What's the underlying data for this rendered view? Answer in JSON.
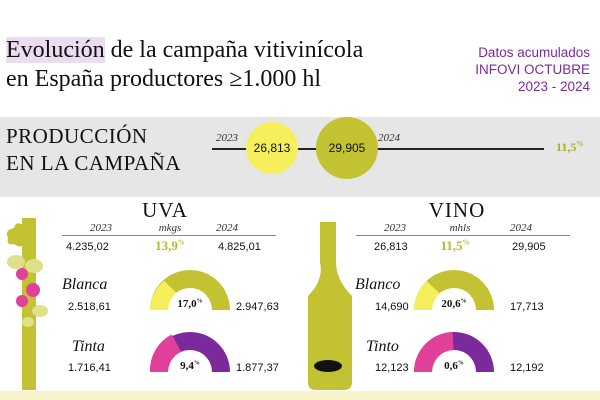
{
  "header": {
    "title_highlight": "Evolución",
    "title_rest": " de la campaña vitivinícola",
    "title_line2": "en España productores ≥1.000 hl",
    "source_line1": "Datos acumulados",
    "source_line2": "INFOVI OCTUBRE",
    "source_line3": "2023 - 2024"
  },
  "production": {
    "label_line1": "PRODUCCIÓN",
    "label_line2": "EN LA CAMPAÑA",
    "year1": "2023",
    "year2": "2024",
    "value1": "26,813",
    "value2": "29,905",
    "change": "11,5",
    "change_sup": "%"
  },
  "uva": {
    "title": "UVA",
    "unit": "mkgs",
    "year1": "2023",
    "year2": "2024",
    "total1": "4.235,02",
    "total2": "4.825,01",
    "total_change": "13,9",
    "blanca_label": "Blanca",
    "blanca1": "2.518,61",
    "blanca2": "2.947,63",
    "blanca_change": "17,0",
    "tinta_label": "Tinta",
    "tinta1": "1.716,41",
    "tinta2": "1.877,37",
    "tinta_change": "9,4",
    "pct_sign": "%"
  },
  "vino": {
    "title": "VINO",
    "unit": "mhls",
    "year1": "2023",
    "year2": "2024",
    "total1": "26,813",
    "total2": "29,905",
    "total_change": "11,5",
    "blanco_label": "Blanco",
    "blanco1": "14,690",
    "blanco2": "17,713",
    "blanco_change": "20,6",
    "tinto_label": "Tinto",
    "tinto1": "12,123",
    "tinto2": "12,192",
    "tinto_change": "0,6",
    "pct_sign": "%"
  },
  "colors": {
    "yellow": "#f4ef5a",
    "olive": "#c2c232",
    "pink": "#e0409a",
    "purple": "#7b2a9c",
    "band": "#e6e6e6"
  },
  "icons": [
    "grape-vine-icon",
    "wine-bottle-icon"
  ]
}
